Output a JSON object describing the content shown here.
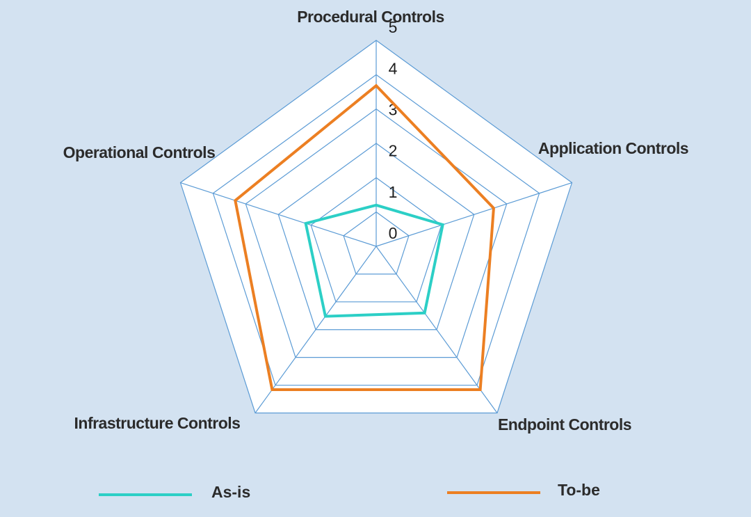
{
  "chart_data": {
    "type": "radar",
    "axes": [
      "Procedural Controls",
      "Application Controls",
      "Endpoint Controls",
      "Infrastructure Controls",
      "Operational Controls"
    ],
    "ticks": [
      "0",
      "1",
      "2",
      "3",
      "4",
      "5"
    ],
    "range": [
      0,
      5
    ],
    "series": [
      {
        "name": "As-is",
        "color": "#2ccfc6",
        "values": [
          1.0,
          1.7,
          2.0,
          2.1,
          1.8
        ]
      },
      {
        "name": "To-be",
        "color": "#ec7f22",
        "values": [
          3.9,
          3.0,
          4.3,
          4.3,
          3.6
        ]
      }
    ],
    "grid_color": "#5b9bd5",
    "plot_fill": "#ffffff",
    "background": "#d3e2f1",
    "legend_position": "bottom"
  }
}
